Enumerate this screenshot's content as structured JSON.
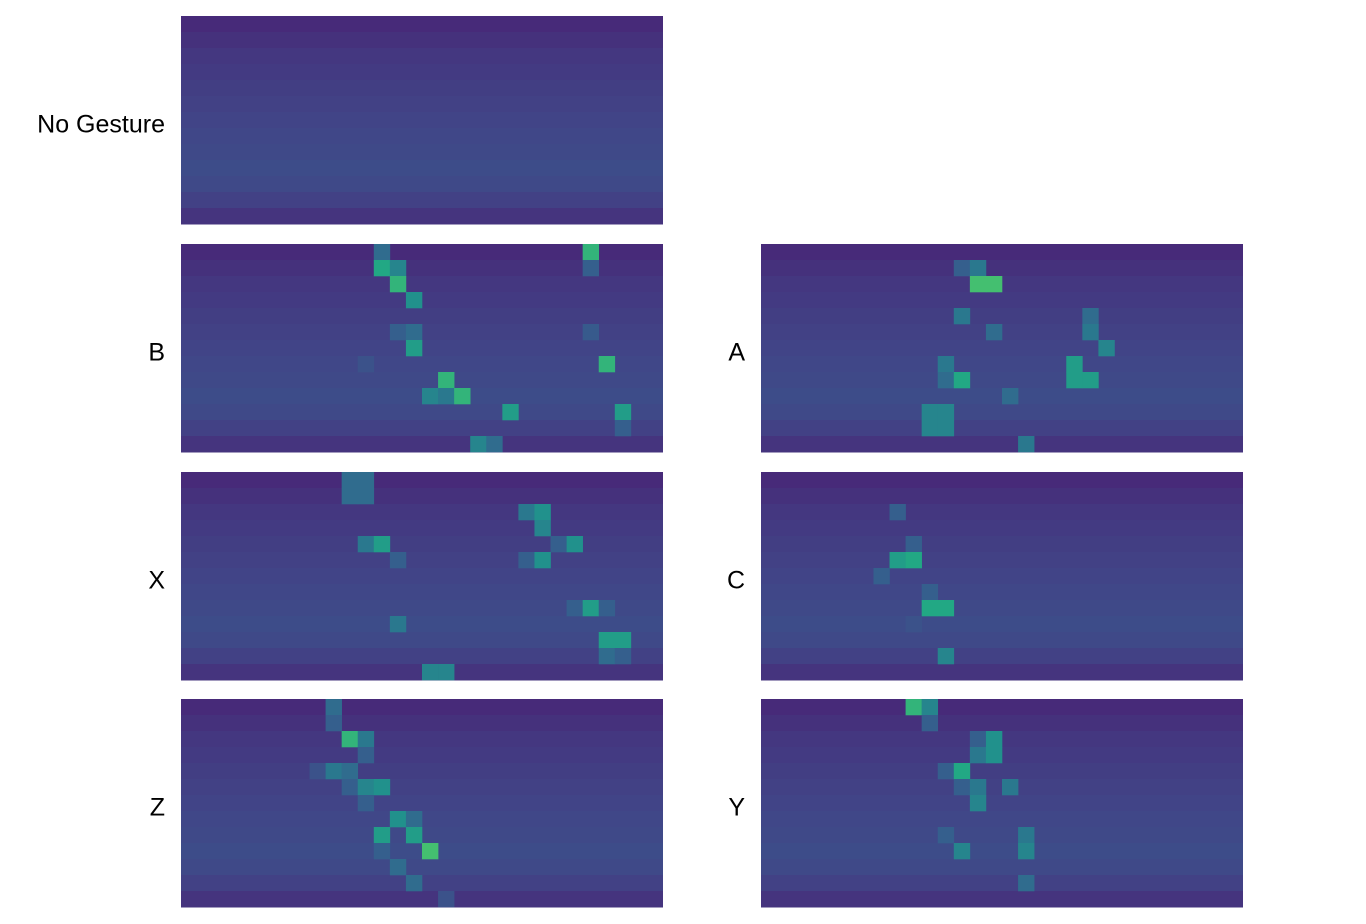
{
  "chart_data": {
    "type": "heatmap",
    "panels": [
      {
        "label": "No Gesture",
        "background": [
          0.12,
          0.14,
          0.16,
          0.17,
          0.18,
          0.19,
          0.2,
          0.21,
          0.22,
          0.23,
          0.22,
          0.19,
          0.15
        ],
        "peaks": []
      },
      {
        "label": "A",
        "background": [
          0.12,
          0.14,
          0.16,
          0.17,
          0.18,
          0.19,
          0.2,
          0.21,
          0.22,
          0.23,
          0.22,
          0.19,
          0.15
        ],
        "peaks": [
          [
            1,
            12,
            0.3
          ],
          [
            1,
            13,
            0.4
          ],
          [
            2,
            13,
            0.7
          ],
          [
            2,
            14,
            0.7
          ],
          [
            4,
            12,
            0.4
          ],
          [
            4,
            20,
            0.35
          ],
          [
            5,
            14,
            0.35
          ],
          [
            5,
            20,
            0.4
          ],
          [
            6,
            21,
            0.45
          ],
          [
            7,
            11,
            0.4
          ],
          [
            7,
            19,
            0.55
          ],
          [
            8,
            11,
            0.35
          ],
          [
            8,
            12,
            0.6
          ],
          [
            8,
            19,
            0.55
          ],
          [
            8,
            20,
            0.55
          ],
          [
            9,
            15,
            0.35
          ],
          [
            10,
            10,
            0.45
          ],
          [
            10,
            11,
            0.45
          ],
          [
            11,
            10,
            0.45
          ],
          [
            11,
            11,
            0.45
          ],
          [
            12,
            16,
            0.4
          ]
        ]
      },
      {
        "label": "B",
        "background": [
          0.12,
          0.14,
          0.16,
          0.17,
          0.18,
          0.19,
          0.2,
          0.21,
          0.22,
          0.23,
          0.22,
          0.19,
          0.15
        ],
        "peaks": [
          [
            0,
            12,
            0.35
          ],
          [
            0,
            25,
            0.65
          ],
          [
            1,
            12,
            0.6
          ],
          [
            1,
            13,
            0.45
          ],
          [
            1,
            25,
            0.3
          ],
          [
            2,
            13,
            0.65
          ],
          [
            3,
            14,
            0.5
          ],
          [
            5,
            13,
            0.3
          ],
          [
            5,
            14,
            0.35
          ],
          [
            5,
            25,
            0.28
          ],
          [
            6,
            14,
            0.55
          ],
          [
            7,
            11,
            0.25
          ],
          [
            7,
            26,
            0.65
          ],
          [
            8,
            16,
            0.65
          ],
          [
            9,
            15,
            0.45
          ],
          [
            9,
            16,
            0.4
          ],
          [
            9,
            17,
            0.65
          ],
          [
            10,
            20,
            0.55
          ],
          [
            10,
            27,
            0.55
          ],
          [
            11,
            27,
            0.3
          ],
          [
            12,
            18,
            0.45
          ],
          [
            12,
            19,
            0.35
          ]
        ]
      },
      {
        "label": "C",
        "background": [
          0.12,
          0.14,
          0.16,
          0.17,
          0.18,
          0.19,
          0.2,
          0.21,
          0.22,
          0.23,
          0.22,
          0.19,
          0.15
        ],
        "peaks": [
          [
            2,
            8,
            0.3
          ],
          [
            4,
            9,
            0.3
          ],
          [
            5,
            8,
            0.55
          ],
          [
            5,
            9,
            0.6
          ],
          [
            6,
            7,
            0.3
          ],
          [
            7,
            10,
            0.3
          ],
          [
            8,
            10,
            0.6
          ],
          [
            8,
            11,
            0.6
          ],
          [
            9,
            9,
            0.25
          ],
          [
            11,
            11,
            0.45
          ]
        ]
      },
      {
        "label": "X",
        "background": [
          0.12,
          0.14,
          0.16,
          0.17,
          0.18,
          0.19,
          0.2,
          0.21,
          0.22,
          0.23,
          0.22,
          0.19,
          0.15
        ],
        "peaks": [
          [
            0,
            10,
            0.35
          ],
          [
            0,
            11,
            0.35
          ],
          [
            1,
            10,
            0.35
          ],
          [
            1,
            11,
            0.35
          ],
          [
            2,
            21,
            0.4
          ],
          [
            2,
            22,
            0.5
          ],
          [
            3,
            22,
            0.45
          ],
          [
            4,
            11,
            0.4
          ],
          [
            4,
            12,
            0.55
          ],
          [
            4,
            23,
            0.3
          ],
          [
            4,
            24,
            0.5
          ],
          [
            5,
            13,
            0.3
          ],
          [
            5,
            21,
            0.3
          ],
          [
            5,
            22,
            0.5
          ],
          [
            8,
            24,
            0.3
          ],
          [
            8,
            25,
            0.55
          ],
          [
            8,
            26,
            0.3
          ],
          [
            9,
            13,
            0.4
          ],
          [
            10,
            26,
            0.55
          ],
          [
            10,
            27,
            0.55
          ],
          [
            11,
            26,
            0.35
          ],
          [
            11,
            27,
            0.3
          ],
          [
            12,
            15,
            0.45
          ],
          [
            12,
            16,
            0.45
          ]
        ]
      },
      {
        "label": "Y",
        "background": [
          0.12,
          0.14,
          0.16,
          0.17,
          0.18,
          0.19,
          0.2,
          0.21,
          0.22,
          0.23,
          0.22,
          0.19,
          0.15
        ],
        "peaks": [
          [
            0,
            9,
            0.65
          ],
          [
            0,
            10,
            0.45
          ],
          [
            1,
            10,
            0.3
          ],
          [
            2,
            13,
            0.3
          ],
          [
            2,
            14,
            0.5
          ],
          [
            3,
            13,
            0.4
          ],
          [
            3,
            14,
            0.5
          ],
          [
            4,
            11,
            0.3
          ],
          [
            4,
            12,
            0.6
          ],
          [
            5,
            12,
            0.3
          ],
          [
            5,
            13,
            0.4
          ],
          [
            5,
            15,
            0.4
          ],
          [
            6,
            13,
            0.45
          ],
          [
            8,
            11,
            0.3
          ],
          [
            8,
            16,
            0.4
          ],
          [
            9,
            12,
            0.45
          ],
          [
            9,
            16,
            0.45
          ],
          [
            11,
            16,
            0.35
          ]
        ]
      },
      {
        "label": "Z",
        "background": [
          0.12,
          0.14,
          0.16,
          0.17,
          0.18,
          0.19,
          0.2,
          0.21,
          0.22,
          0.23,
          0.22,
          0.19,
          0.15
        ],
        "peaks": [
          [
            0,
            9,
            0.35
          ],
          [
            1,
            9,
            0.3
          ],
          [
            2,
            10,
            0.65
          ],
          [
            2,
            11,
            0.4
          ],
          [
            3,
            11,
            0.3
          ],
          [
            4,
            8,
            0.25
          ],
          [
            4,
            9,
            0.4
          ],
          [
            4,
            10,
            0.35
          ],
          [
            5,
            10,
            0.3
          ],
          [
            5,
            11,
            0.45
          ],
          [
            5,
            12,
            0.5
          ],
          [
            6,
            11,
            0.3
          ],
          [
            7,
            13,
            0.5
          ],
          [
            7,
            14,
            0.35
          ],
          [
            8,
            12,
            0.55
          ],
          [
            8,
            14,
            0.55
          ],
          [
            9,
            12,
            0.3
          ],
          [
            9,
            15,
            0.7
          ],
          [
            10,
            13,
            0.35
          ],
          [
            11,
            14,
            0.35
          ],
          [
            12,
            16,
            0.25
          ]
        ]
      }
    ]
  }
}
